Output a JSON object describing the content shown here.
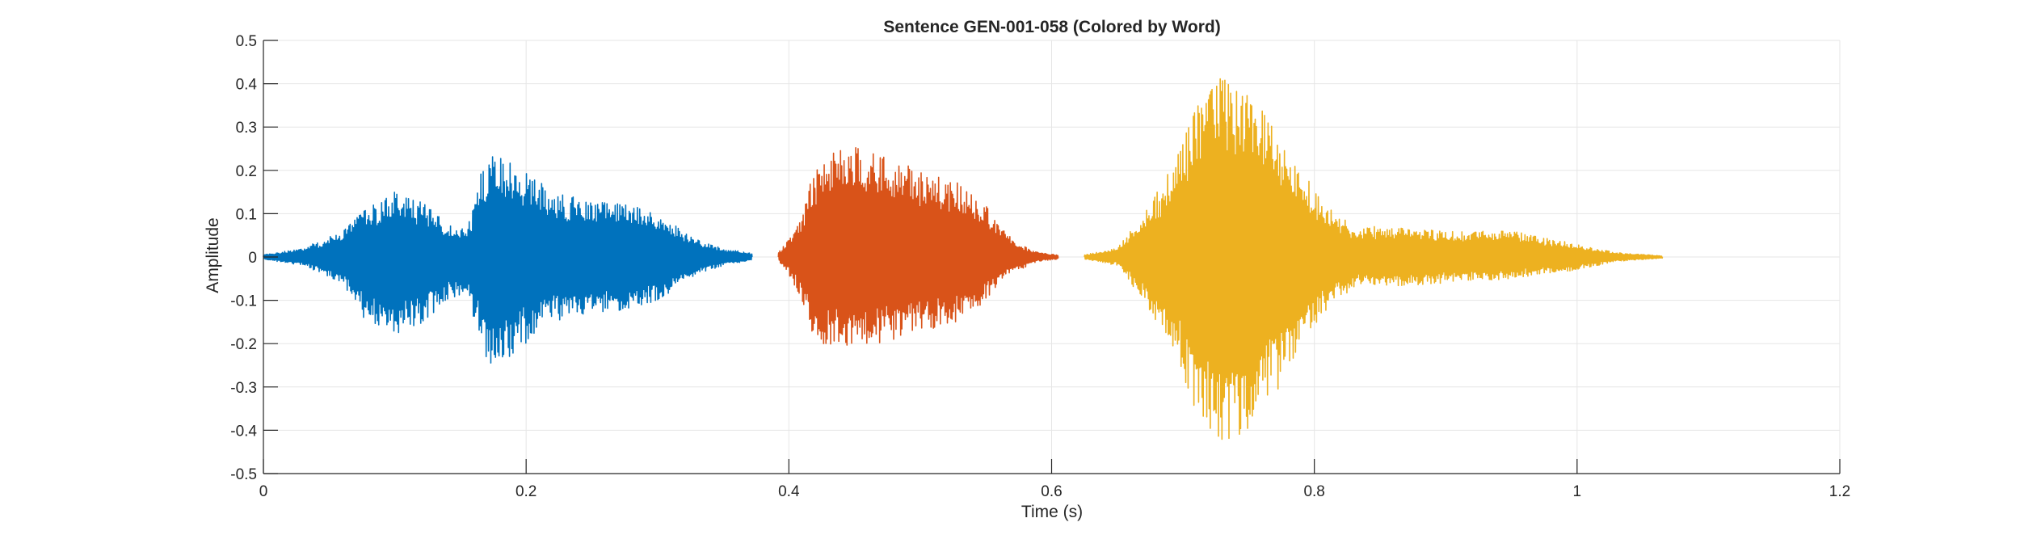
{
  "chart_data": {
    "type": "line",
    "title": "Sentence GEN-001-058 (Colored by Word)",
    "xlabel": "Time (s)",
    "ylabel": "Amplitude",
    "xlim": [
      0,
      1.2
    ],
    "ylim": [
      -0.5,
      0.5
    ],
    "x_ticks": [
      0,
      0.2,
      0.4,
      0.6,
      0.8,
      1,
      1.2
    ],
    "x_tick_labels": [
      "0",
      "0.2",
      "0.4",
      "0.6",
      "0.8",
      "1",
      "1.2"
    ],
    "y_ticks": [
      0.5,
      0.4,
      0.3,
      0.2,
      0.1,
      0,
      -0.1,
      -0.2,
      -0.3,
      -0.4,
      -0.5
    ],
    "y_tick_labels": [
      "0.5",
      "0.4",
      "0.3",
      "0.2",
      "0.1",
      "0",
      "-0.1",
      "-0.2",
      "-0.3",
      "-0.4",
      "-0.5"
    ],
    "grid": true,
    "legend": "none",
    "colors": {
      "word1": "#0072BD",
      "word2": "#D95319",
      "word3": "#EDB120",
      "grid": "#e6e6e6",
      "axis": "#262626"
    },
    "series": [
      {
        "color": "#0072BD",
        "start": 0.0,
        "end": 0.372,
        "envelope_time": [
          0.0,
          0.03,
          0.06,
          0.08,
          0.1,
          0.12,
          0.14,
          0.155,
          0.165,
          0.175,
          0.2,
          0.22,
          0.25,
          0.28,
          0.3,
          0.315,
          0.33,
          0.35,
          0.372
        ],
        "envelope_pos": [
          0.005,
          0.02,
          0.06,
          0.12,
          0.15,
          0.13,
          0.08,
          0.06,
          0.19,
          0.24,
          0.2,
          0.15,
          0.13,
          0.12,
          0.1,
          0.07,
          0.04,
          0.02,
          0.008
        ],
        "envelope_neg": [
          -0.005,
          -0.02,
          -0.06,
          -0.16,
          -0.18,
          -0.16,
          -0.1,
          -0.08,
          -0.2,
          -0.27,
          -0.2,
          -0.15,
          -0.13,
          -0.12,
          -0.1,
          -0.07,
          -0.04,
          -0.02,
          -0.008
        ]
      },
      {
        "color": "#D95319",
        "start": 0.392,
        "end": 0.605,
        "envelope_time": [
          0.392,
          0.4,
          0.41,
          0.42,
          0.44,
          0.47,
          0.5,
          0.53,
          0.55,
          0.56,
          0.575,
          0.59,
          0.605
        ],
        "envelope_pos": [
          0.01,
          0.04,
          0.1,
          0.21,
          0.26,
          0.24,
          0.2,
          0.17,
          0.12,
          0.07,
          0.03,
          0.01,
          0.005
        ],
        "envelope_neg": [
          -0.01,
          -0.04,
          -0.1,
          -0.2,
          -0.21,
          -0.2,
          -0.18,
          -0.15,
          -0.1,
          -0.06,
          -0.03,
          -0.01,
          -0.005
        ]
      },
      {
        "color": "#EDB120",
        "start": 0.625,
        "end": 1.065,
        "envelope_time": [
          0.625,
          0.65,
          0.67,
          0.69,
          0.71,
          0.73,
          0.75,
          0.77,
          0.79,
          0.81,
          0.83,
          0.85,
          0.9,
          0.95,
          1.0,
          1.03,
          1.065
        ],
        "envelope_pos": [
          0.005,
          0.02,
          0.1,
          0.2,
          0.35,
          0.42,
          0.38,
          0.3,
          0.2,
          0.12,
          0.07,
          0.07,
          0.06,
          0.06,
          0.03,
          0.01,
          0.003
        ],
        "envelope_neg": [
          -0.005,
          -0.02,
          -0.1,
          -0.2,
          -0.36,
          -0.43,
          -0.4,
          -0.32,
          -0.2,
          -0.12,
          -0.07,
          -0.07,
          -0.06,
          -0.05,
          -0.03,
          -0.01,
          -0.003
        ]
      }
    ]
  }
}
